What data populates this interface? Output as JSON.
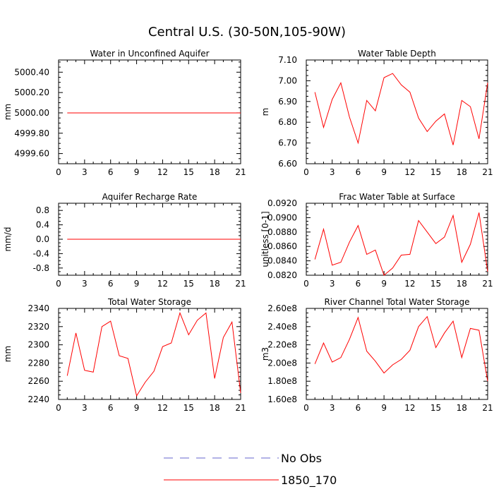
{
  "figure": {
    "title": "Central U.S. (30-50N,105-90W)",
    "legend": [
      {
        "label": "No Obs",
        "color": "#6666cc",
        "style": "dashed"
      },
      {
        "label": "1850_170",
        "color": "#ff0000",
        "style": "solid"
      }
    ]
  },
  "chart_data": [
    {
      "type": "line",
      "title": "Water in Unconfined Aquifer",
      "xlabel": "",
      "ylabel": "mm",
      "xlim": [
        0,
        21
      ],
      "ylim": [
        4999.5,
        5000.52
      ],
      "xticks": [
        0,
        3,
        6,
        9,
        12,
        15,
        18,
        21
      ],
      "yticks": [
        4999.6,
        4999.8,
        5000.0,
        5000.2,
        5000.4
      ],
      "ytick_labels": [
        "4999.60",
        "4999.80",
        "5000.00",
        "5000.20",
        "5000.40"
      ],
      "series": [
        {
          "name": "1850_170",
          "color": "#ff0000",
          "x": [
            1,
            2,
            3,
            4,
            5,
            6,
            7,
            8,
            9,
            10,
            11,
            12,
            13,
            14,
            15,
            16,
            17,
            18,
            19,
            20,
            21
          ],
          "values": [
            5000,
            5000,
            5000,
            5000,
            5000,
            5000,
            5000,
            5000,
            5000,
            5000,
            5000,
            5000,
            5000,
            5000,
            5000,
            5000,
            5000,
            5000,
            5000,
            5000,
            5000
          ]
        }
      ]
    },
    {
      "type": "line",
      "title": "Water Table Depth",
      "xlabel": "",
      "ylabel": "m",
      "xlim": [
        0,
        21
      ],
      "ylim": [
        6.6,
        7.1
      ],
      "xticks": [
        0,
        3,
        6,
        9,
        12,
        15,
        18,
        21
      ],
      "yticks": [
        6.6,
        6.7,
        6.8,
        6.9,
        7.0,
        7.1
      ],
      "ytick_labels": [
        "6.60",
        "6.70",
        "6.80",
        "6.90",
        "7.00",
        "7.10"
      ],
      "series": [
        {
          "name": "1850_170",
          "color": "#ff0000",
          "x": [
            1,
            2,
            3,
            4,
            5,
            6,
            7,
            8,
            9,
            10,
            11,
            12,
            13,
            14,
            15,
            16,
            17,
            18,
            19,
            20,
            21
          ],
          "values": [
            6.945,
            6.775,
            6.91,
            6.99,
            6.825,
            6.7,
            6.905,
            6.855,
            7.015,
            7.035,
            6.98,
            6.945,
            6.82,
            6.755,
            6.805,
            6.84,
            6.69,
            6.905,
            6.875,
            6.72,
            6.99
          ]
        }
      ]
    },
    {
      "type": "line",
      "title": "Aquifer Recharge Rate",
      "xlabel": "",
      "ylabel": "mm/d",
      "xlim": [
        0,
        21
      ],
      "ylim": [
        -1.0,
        1.0
      ],
      "xticks": [
        0,
        3,
        6,
        9,
        12,
        15,
        18,
        21
      ],
      "yticks": [
        -0.8,
        -0.4,
        0.0,
        0.4,
        0.8
      ],
      "ytick_labels": [
        "-0.8",
        "-0.4",
        "0.0",
        "0.4",
        "0.8"
      ],
      "series": [
        {
          "name": "1850_170",
          "color": "#ff0000",
          "x": [
            1,
            2,
            3,
            4,
            5,
            6,
            7,
            8,
            9,
            10,
            11,
            12,
            13,
            14,
            15,
            16,
            17,
            18,
            19,
            20,
            21
          ],
          "values": [
            0,
            0,
            0,
            0,
            0,
            0,
            0,
            0,
            0,
            0,
            0,
            0,
            0,
            0,
            0,
            0,
            0,
            0,
            0,
            0,
            0
          ]
        }
      ]
    },
    {
      "type": "line",
      "title": "Frac Water Table at Surface",
      "xlabel": "",
      "ylabel": "unitless [0-1]",
      "xlim": [
        0,
        21
      ],
      "ylim": [
        0.082,
        0.092
      ],
      "xticks": [
        0,
        3,
        6,
        9,
        12,
        15,
        18,
        21
      ],
      "yticks": [
        0.082,
        0.084,
        0.086,
        0.088,
        0.09,
        0.092
      ],
      "ytick_labels": [
        "0.0820",
        "0.0840",
        "0.0860",
        "0.0880",
        "0.0900",
        "0.0920"
      ],
      "series": [
        {
          "name": "1850_170",
          "color": "#ff0000",
          "x": [
            1,
            2,
            3,
            4,
            5,
            6,
            7,
            8,
            9,
            10,
            11,
            12,
            13,
            14,
            15,
            16,
            17,
            18,
            19,
            20,
            21
          ],
          "values": [
            0.0842,
            0.0884,
            0.0834,
            0.0838,
            0.0866,
            0.0889,
            0.0849,
            0.0855,
            0.082,
            0.083,
            0.0848,
            0.0849,
            0.0896,
            0.088,
            0.0864,
            0.0873,
            0.0903,
            0.0838,
            0.0863,
            0.0907,
            0.0825
          ]
        }
      ]
    },
    {
      "type": "line",
      "title": "Total Water Storage",
      "xlabel": "",
      "ylabel": "mm",
      "xlim": [
        0,
        21
      ],
      "ylim": [
        2240,
        2340
      ],
      "xticks": [
        0,
        3,
        6,
        9,
        12,
        15,
        18,
        21
      ],
      "yticks": [
        2240,
        2260,
        2280,
        2300,
        2320,
        2340
      ],
      "ytick_labels": [
        "2240",
        "2260",
        "2280",
        "2300",
        "2320",
        "2340"
      ],
      "series": [
        {
          "name": "1850_170",
          "color": "#ff0000",
          "x": [
            1,
            2,
            3,
            4,
            5,
            6,
            7,
            8,
            9,
            10,
            11,
            12,
            13,
            14,
            15,
            16,
            17,
            18,
            19,
            20,
            21
          ],
          "values": [
            2266,
            2313,
            2272,
            2270,
            2320,
            2326,
            2288,
            2285,
            2244,
            2259,
            2271,
            2298,
            2302,
            2335,
            2311,
            2327,
            2335,
            2263,
            2308,
            2325,
            2247
          ]
        }
      ]
    },
    {
      "type": "line",
      "title": "River Channel Total Water Storage",
      "xlabel": "",
      "ylabel": "m3",
      "xlim": [
        0,
        21
      ],
      "ylim": [
        160000000,
        260000000
      ],
      "xticks": [
        0,
        3,
        6,
        9,
        12,
        15,
        18,
        21
      ],
      "yticks": [
        160000000,
        180000000,
        200000000,
        220000000,
        240000000,
        260000000
      ],
      "ytick_labels": [
        "1.60e8",
        "1.80e8",
        "2.00e8",
        "2.20e8",
        "2.40e8",
        "2.60e8"
      ],
      "series": [
        {
          "name": "1850_170",
          "color": "#ff0000",
          "x": [
            1,
            2,
            3,
            4,
            5,
            6,
            7,
            8,
            9,
            10,
            11,
            12,
            13,
            14,
            15,
            16,
            17,
            18,
            19,
            20,
            21
          ],
          "values": [
            199000000,
            222000000,
            201000000,
            206000000,
            226000000,
            250000000,
            213000000,
            202000000,
            189000000,
            198000000,
            204000000,
            214000000,
            240000000,
            251000000,
            217000000,
            233000000,
            246000000,
            206000000,
            238000000,
            236000000,
            180000000
          ]
        }
      ]
    }
  ]
}
